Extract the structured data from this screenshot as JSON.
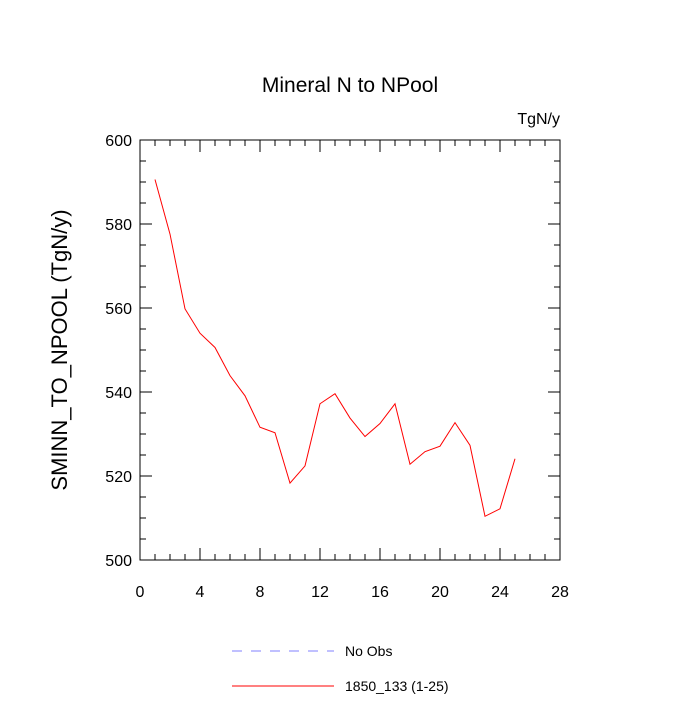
{
  "chart_data": {
    "type": "line",
    "title": "Mineral N to NPool",
    "units": "TgN/y",
    "xlabel": "",
    "ylabel": "SMINN_TO_NPOOL  (TgN/y)",
    "xlim": [
      0,
      28
    ],
    "ylim": [
      500,
      600
    ],
    "x_ticks": [
      0,
      4,
      8,
      12,
      16,
      20,
      24,
      28
    ],
    "y_ticks": [
      500,
      520,
      540,
      560,
      580,
      600
    ],
    "grid": false,
    "legend_position": "bottom",
    "series": [
      {
        "name": "No Obs",
        "color": "#8080ff",
        "style": "dashed",
        "x": [],
        "y": []
      },
      {
        "name": "1850_133 (1-25)",
        "color": "#ff0000",
        "style": "solid",
        "x": [
          1,
          2,
          3,
          4,
          5,
          6,
          7,
          8,
          9,
          10,
          11,
          12,
          13,
          14,
          15,
          16,
          17,
          18,
          19,
          20,
          21,
          22,
          23,
          24,
          25
        ],
        "y": [
          590.6,
          577.6,
          559.8,
          554.0,
          550.6,
          543.9,
          539.1,
          531.6,
          530.3,
          518.3,
          522.4,
          537.2,
          539.6,
          533.8,
          529.4,
          532.5,
          537.2,
          522.8,
          525.8,
          527.1,
          532.7,
          527.3,
          510.4,
          512.2,
          524.1
        ]
      }
    ]
  }
}
